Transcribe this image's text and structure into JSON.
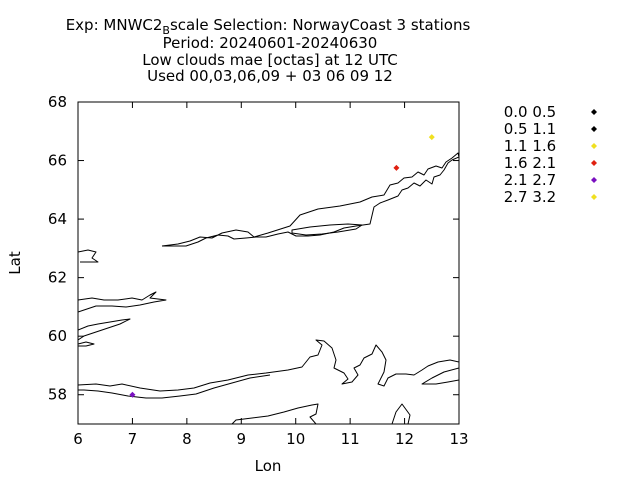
{
  "title": {
    "line1_prefix": "Exp: MNWC2",
    "line1_subscript": "B",
    "line1_suffix": "scale   Selection: NorwayCoast       3 stations",
    "line2": "Period: 20240601-20240630",
    "line3": "Low clouds mae [octas] at  12 UTC",
    "line4": "Used 00,03,06,09 + 03 06 09 12"
  },
  "chart_data": {
    "type": "scatter",
    "xlabel": "Lon",
    "ylabel": "Lat",
    "xlim": [
      6,
      13
    ],
    "ylim": [
      57,
      68
    ],
    "xticks": [
      6,
      7,
      8,
      9,
      10,
      11,
      12,
      13
    ],
    "yticks": [
      58,
      60,
      62,
      64,
      66,
      68
    ],
    "grid": false,
    "legend_position": "right",
    "legend": [
      {
        "label": "0.0 0.5",
        "color": "#000000"
      },
      {
        "label": "0.5 1.1",
        "color": "#000000"
      },
      {
        "label": "1.1 1.6",
        "color": "#f0e020"
      },
      {
        "label": "1.6 2.1",
        "color": "#e02010"
      },
      {
        "label": "2.1 2.7",
        "color": "#7a10c0"
      },
      {
        "label": "2.7 3.2",
        "color": "#f0e020"
      }
    ],
    "points": [
      {
        "lon": 12.5,
        "lat": 66.8,
        "bin": "2.7 3.2",
        "color": "#f0e020"
      },
      {
        "lon": 11.85,
        "lat": 65.75,
        "bin": "1.6 2.1",
        "color": "#e02010"
      },
      {
        "lon": 7.0,
        "lat": 58.0,
        "bin": "2.1 2.7",
        "color": "#7a10c0"
      }
    ]
  }
}
